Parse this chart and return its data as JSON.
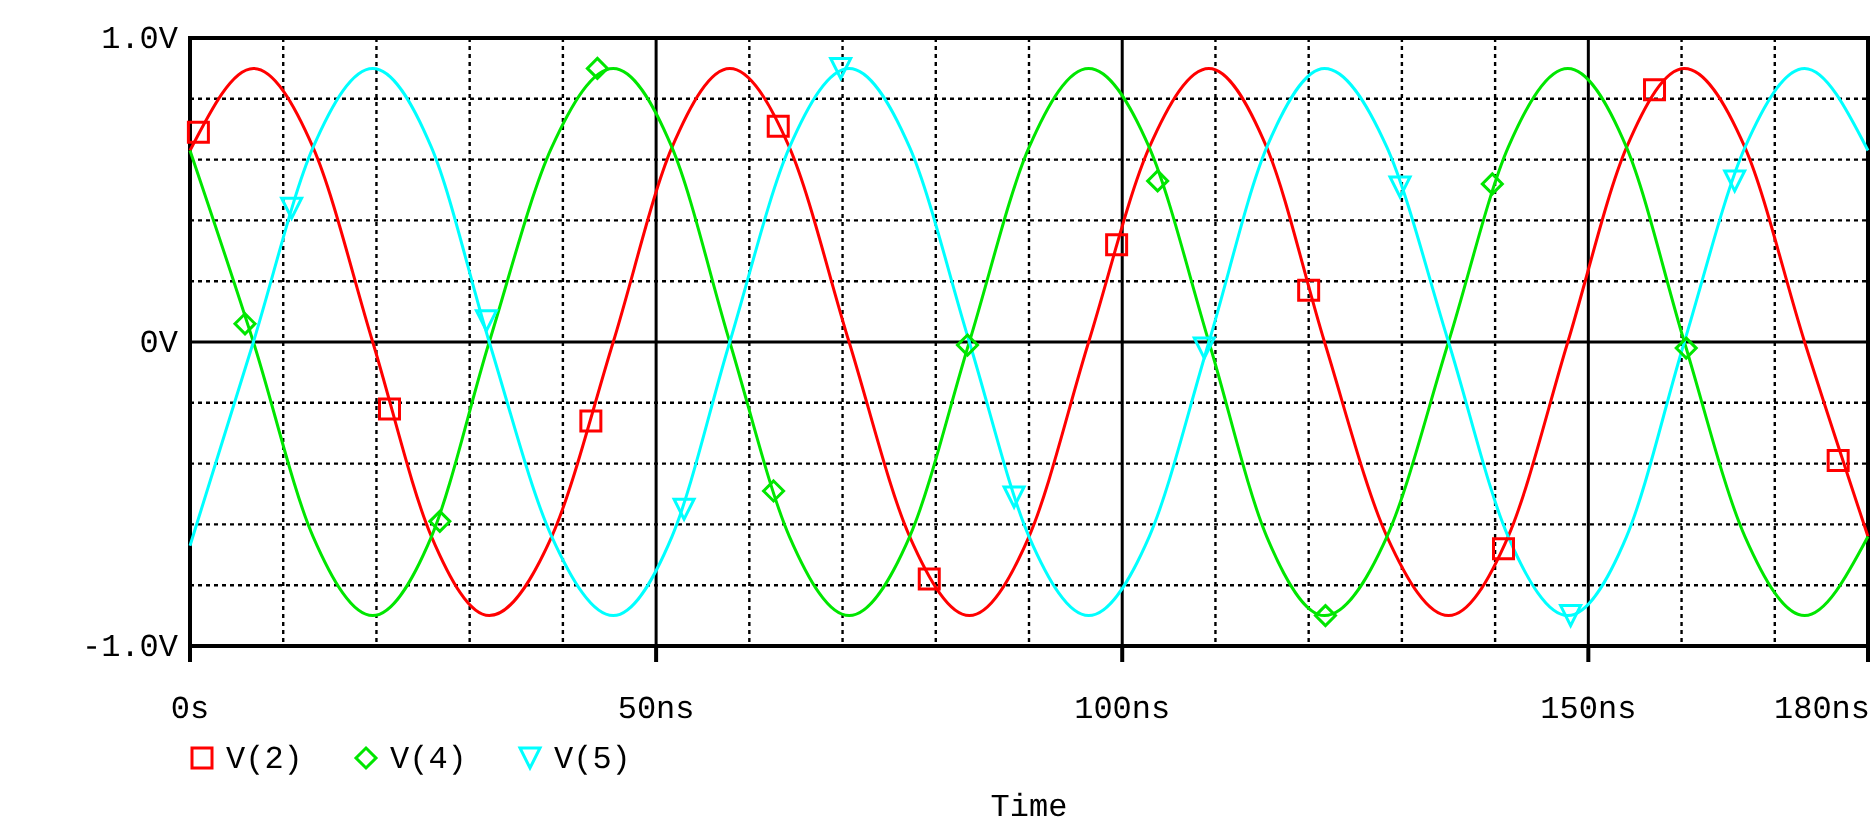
{
  "chart_data": {
    "type": "line",
    "xlabel": "Time",
    "x": [
      0,
      6.8,
      13.2,
      19.6,
      25.9,
      32.1,
      38.8,
      45.4,
      51.7,
      57.9,
      64.3,
      70.7,
      77.2,
      83.6,
      90.0,
      96.4,
      102.9,
      109.3,
      115.5,
      121.7,
      128.4,
      135,
      141.4,
      147.8,
      154.1,
      160.3,
      166.8,
      173.2,
      180
    ],
    "series": [
      {
        "color": "#ff0000",
        "values": [
          0.63,
          0.9,
          0.64,
          0,
          -0.64,
          -0.9,
          -0.64,
          0,
          0.64,
          0.9,
          0.64,
          0,
          -0.64,
          -0.9,
          -0.64,
          0,
          0.64,
          0.9,
          0.64,
          0,
          -0.64,
          -0.9,
          -0.64,
          0,
          0.64,
          0.9,
          0.64,
          0,
          -0.64
        ]
      },
      {
        "color": "#00e600",
        "values": [
          0.63,
          0,
          -0.64,
          -0.9,
          -0.64,
          0,
          0.64,
          0.9,
          0.64,
          0,
          -0.64,
          -0.9,
          -0.64,
          0,
          0.64,
          0.9,
          0.64,
          0,
          -0.64,
          -0.9,
          -0.64,
          0,
          0.64,
          0.9,
          0.64,
          0,
          -0.64,
          -0.9,
          -0.64
        ]
      },
      {
        "color": "#00ffff",
        "values": [
          -0.67,
          0,
          0.64,
          0.9,
          0.64,
          0,
          -0.64,
          -0.9,
          -0.64,
          0,
          0.64,
          0.9,
          0.64,
          0,
          -0.64,
          -0.9,
          -0.64,
          0,
          0.64,
          0.9,
          0.64,
          0,
          -0.64,
          -0.9,
          -0.64,
          0,
          0.64,
          0.9,
          0.63
        ]
      },
      {
        "type": "scatter",
        "name": "V(2)",
        "color": "#ff0000",
        "marker": "square",
        "x": [
          0.9,
          21.4,
          43.0,
          63.1,
          79.3,
          99.4,
          120,
          140.9,
          157.1,
          176.8
        ],
        "values": [
          0.69,
          -0.22,
          -0.26,
          0.71,
          -0.78,
          0.32,
          0.17,
          -0.68,
          0.83,
          -0.39
        ]
      },
      {
        "type": "scatter",
        "name": "V(4)",
        "color": "#00e600",
        "marker": "diamond",
        "x": [
          5.9,
          26.8,
          43.7,
          62.6,
          83.4,
          103.8,
          121.8,
          139.7,
          160.5
        ],
        "values": [
          0.06,
          -0.59,
          0.9,
          -0.49,
          -0.01,
          0.53,
          -0.9,
          0.52,
          -0.02
        ]
      },
      {
        "type": "scatter",
        "name": "V(5)",
        "color": "#00ffff",
        "marker": "triangle-down",
        "x": [
          10.9,
          31.8,
          53.0,
          69.8,
          88.4,
          108.8,
          129.8,
          148.1,
          165.7
        ],
        "values": [
          0.44,
          0.07,
          -0.55,
          0.9,
          -0.51,
          -0.02,
          0.51,
          -0.9,
          0.53
        ]
      }
    ],
    "xlim": [
      0,
      180
    ],
    "xticks": [
      {
        "value": 0,
        "label": "0s"
      },
      {
        "value": 10,
        "label": null
      },
      {
        "value": 20,
        "label": null
      },
      {
        "value": 30,
        "label": null
      },
      {
        "value": 40,
        "label": null
      },
      {
        "value": 50,
        "label": "50ns"
      },
      {
        "value": 60,
        "label": null
      },
      {
        "value": 70,
        "label": null
      },
      {
        "value": 80,
        "label": null
      },
      {
        "value": 90,
        "label": null
      },
      {
        "value": 100,
        "label": "100ns"
      },
      {
        "value": 110,
        "label": null
      },
      {
        "value": 120,
        "label": null
      },
      {
        "value": 130,
        "label": null
      },
      {
        "value": 140,
        "label": null
      },
      {
        "value": 150,
        "label": "150ns"
      },
      {
        "value": 160,
        "label": null
      },
      {
        "value": 170,
        "label": null
      },
      {
        "value": 180,
        "label": "180ns"
      }
    ],
    "ylim": [
      -1,
      1
    ],
    "yticks": [
      {
        "value": -1,
        "label": "-1.0V"
      },
      {
        "value": -0.8,
        "label": null
      },
      {
        "value": -0.6,
        "label": null
      },
      {
        "value": -0.4,
        "label": null
      },
      {
        "value": -0.2,
        "label": null
      },
      {
        "value": 0,
        "label": "0V"
      },
      {
        "value": 0.2,
        "label": null
      },
      {
        "value": 0.4,
        "label": null
      },
      {
        "value": 0.6,
        "label": null
      },
      {
        "value": 0.8,
        "label": null
      },
      {
        "value": 1,
        "label": "1.0V"
      }
    ],
    "grid": true,
    "legend": "bottom left"
  }
}
